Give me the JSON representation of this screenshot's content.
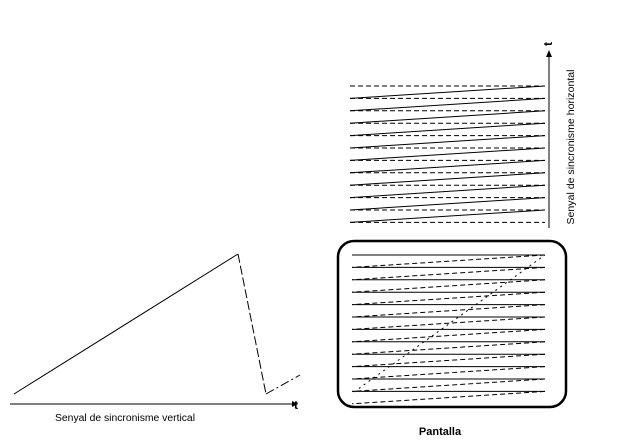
{
  "vertical_sync": {
    "caption": "Senyal de sincronisme vertical",
    "axis_label": "t"
  },
  "horizontal_sync": {
    "caption": "Senyal de sincronisme horizontal",
    "axis_label": "t",
    "line_count": 11
  },
  "screen": {
    "caption": "Pantalla",
    "scan_line_count": 12
  },
  "colors": {
    "ink": "#000000",
    "background": "#ffffff"
  }
}
